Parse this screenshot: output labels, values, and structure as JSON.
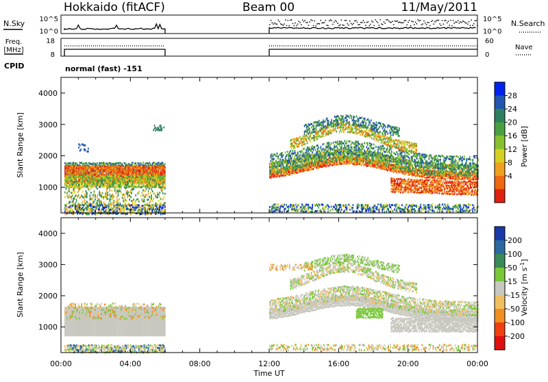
{
  "header": {
    "station": "Hokkaido (fitACF)",
    "beam": "Beam 00",
    "date": "11/May/2011"
  },
  "summary_panels": {
    "nsky_label": "N.Sky",
    "nsearch_label": "N.Search",
    "noise_ticks": [
      "10^5",
      "10^0"
    ],
    "freq_label_line1": "Freq.",
    "freq_label_line2": "[MHz]",
    "freq_ticks": [
      "18",
      "8"
    ],
    "nave_label": "Nave",
    "nave_ticks": [
      "60",
      "0"
    ],
    "cpid_label": "CPID",
    "cpid_text": "normal (fast) -151"
  },
  "power_colorbar": {
    "label": "Power [dB]",
    "ticks": [
      "28",
      "24",
      "20",
      "16",
      "12",
      "8",
      "4"
    ],
    "colors": [
      "#0022ee",
      "#2255b0",
      "#2e8060",
      "#4aa040",
      "#86c02e",
      "#d4d020",
      "#f0a020",
      "#f06810",
      "#e02010"
    ]
  },
  "velocity_colorbar": {
    "label_main": "Velocity [m s",
    "label_exp": "-1",
    "label_end": "]",
    "ticks": [
      "200",
      "100",
      "50",
      "15",
      "-15",
      "-50",
      "-100",
      "-200"
    ],
    "colors": [
      "#1a3aa8",
      "#2a6aa0",
      "#3a8a5a",
      "#7ac83a",
      "#c8c8c0",
      "#f0c060",
      "#f09020",
      "#f04010",
      "#e01010"
    ]
  },
  "chart_data": [
    {
      "type": "heatmap",
      "title": "",
      "xlabel": "",
      "ylabel": "Slant Range [km]",
      "value_label": "Power [dB]",
      "x_range_hours": [
        0,
        24
      ],
      "ylim": [
        180,
        4500
      ],
      "yticks": [
        1000,
        2000,
        3000,
        4000
      ],
      "zlim": [
        0,
        30
      ],
      "regions": [
        {
          "t_start": 0.2,
          "t_end": 6.0,
          "r_low": 300,
          "r_high": 1700,
          "peak_power": 26
        },
        {
          "t_start": 12.0,
          "t_end": 24.0,
          "r_low": 800,
          "r_high": 3300,
          "peak_power": 26
        }
      ]
    },
    {
      "type": "heatmap",
      "title": "",
      "xlabel": "Time UT",
      "ylabel": "Slant Range [km]",
      "value_label": "Velocity [m s-1]",
      "x_range_hours": [
        0,
        24
      ],
      "xticks": [
        "00:00",
        "04:00",
        "08:00",
        "12:00",
        "16:00",
        "20:00",
        "00:00"
      ],
      "ylim": [
        180,
        4500
      ],
      "yticks": [
        1000,
        2000,
        3000,
        4000
      ],
      "zlim": [
        -200,
        200
      ],
      "regions": [
        {
          "t_start": 0.2,
          "t_end": 6.0,
          "r_low": 300,
          "r_high": 1700,
          "dominant_velocity": 0
        },
        {
          "t_start": 12.0,
          "t_end": 24.0,
          "r_low": 800,
          "r_high": 3300,
          "dominant_velocity": 0
        }
      ]
    }
  ]
}
